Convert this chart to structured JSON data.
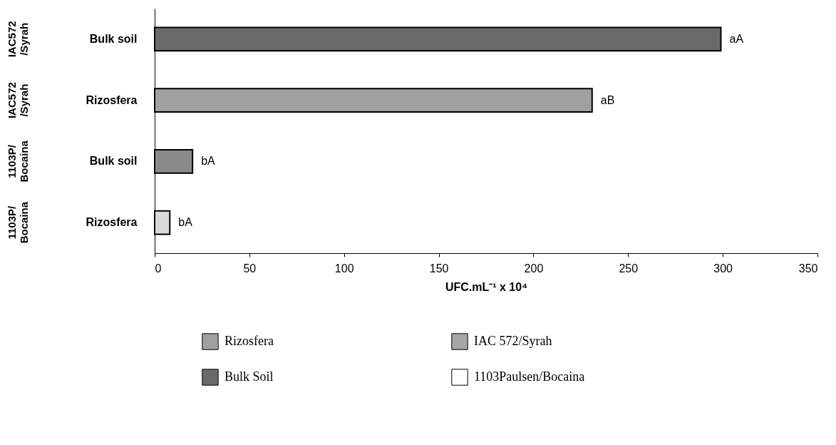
{
  "chart_data": {
    "type": "bar",
    "orientation": "horizontal",
    "xlabel": "UFC.mL⁻¹ x 10⁴",
    "categories": [
      "Bulk soil",
      "Rizosfera",
      "Bulk soil",
      "Rizosfera"
    ],
    "series": [
      {
        "name": "Rizosfera",
        "color": "#a0a0a0",
        "colors": [
          null,
          "#a0a0a0",
          null,
          "#d9d9d9"
        ],
        "values": [
          null,
          231,
          null,
          8
        ]
      },
      {
        "name": "Bulk Soil",
        "color": "#6a6a6a",
        "colors": [
          "#6a6a6a",
          null,
          "#8a8a8a",
          null
        ],
        "values": [
          299,
          null,
          20,
          null
        ]
      }
    ],
    "value_labels": [
      "aA",
      "aB",
      "bA",
      "bA"
    ],
    "annotations": [
      "IAC572 /Syrah",
      "IAC572 /Syrah",
      "1103P/ Bocaina",
      "1103P/ Bocaina",
      "IAC 572/Syrah",
      "1103Paulsen/Bocaina"
    ],
    "xlim": [
      0,
      350
    ],
    "xticks": [
      0,
      50,
      100,
      150,
      200,
      250,
      300,
      350
    ],
    "legend": "bottom"
  }
}
